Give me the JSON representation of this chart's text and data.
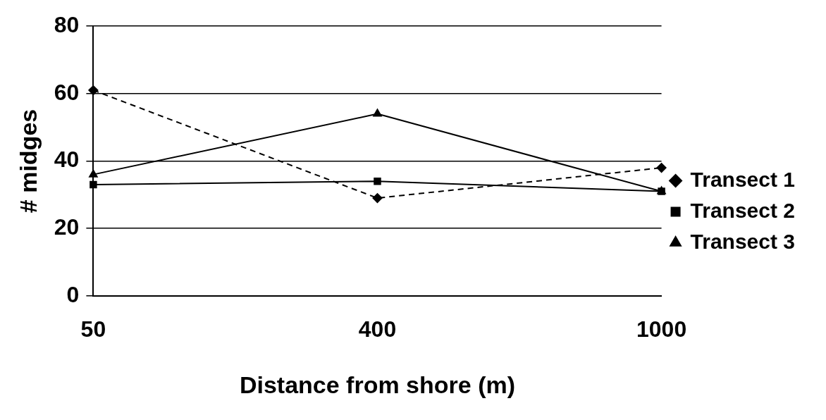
{
  "chart_data": {
    "type": "line",
    "xlabel": "Distance from shore (m)",
    "ylabel": "# midges",
    "categories": [
      "50",
      "400",
      "1000"
    ],
    "series": [
      {
        "name": "Transect 1",
        "color": "#000000",
        "marker": "diamond",
        "line_style": "dashed",
        "values": [
          61,
          29,
          38
        ]
      },
      {
        "name": "Transect 2",
        "color": "#000000",
        "marker": "square",
        "line_style": "solid",
        "values": [
          33,
          34,
          31
        ]
      },
      {
        "name": "Transect 3",
        "color": "#000000",
        "marker": "triangle",
        "line_style": "solid",
        "values": [
          36,
          54,
          31
        ]
      }
    ],
    "ylim": [
      0,
      80
    ],
    "yticks": [
      0,
      20,
      40,
      60,
      80
    ],
    "grid": "y",
    "legend": "right"
  }
}
